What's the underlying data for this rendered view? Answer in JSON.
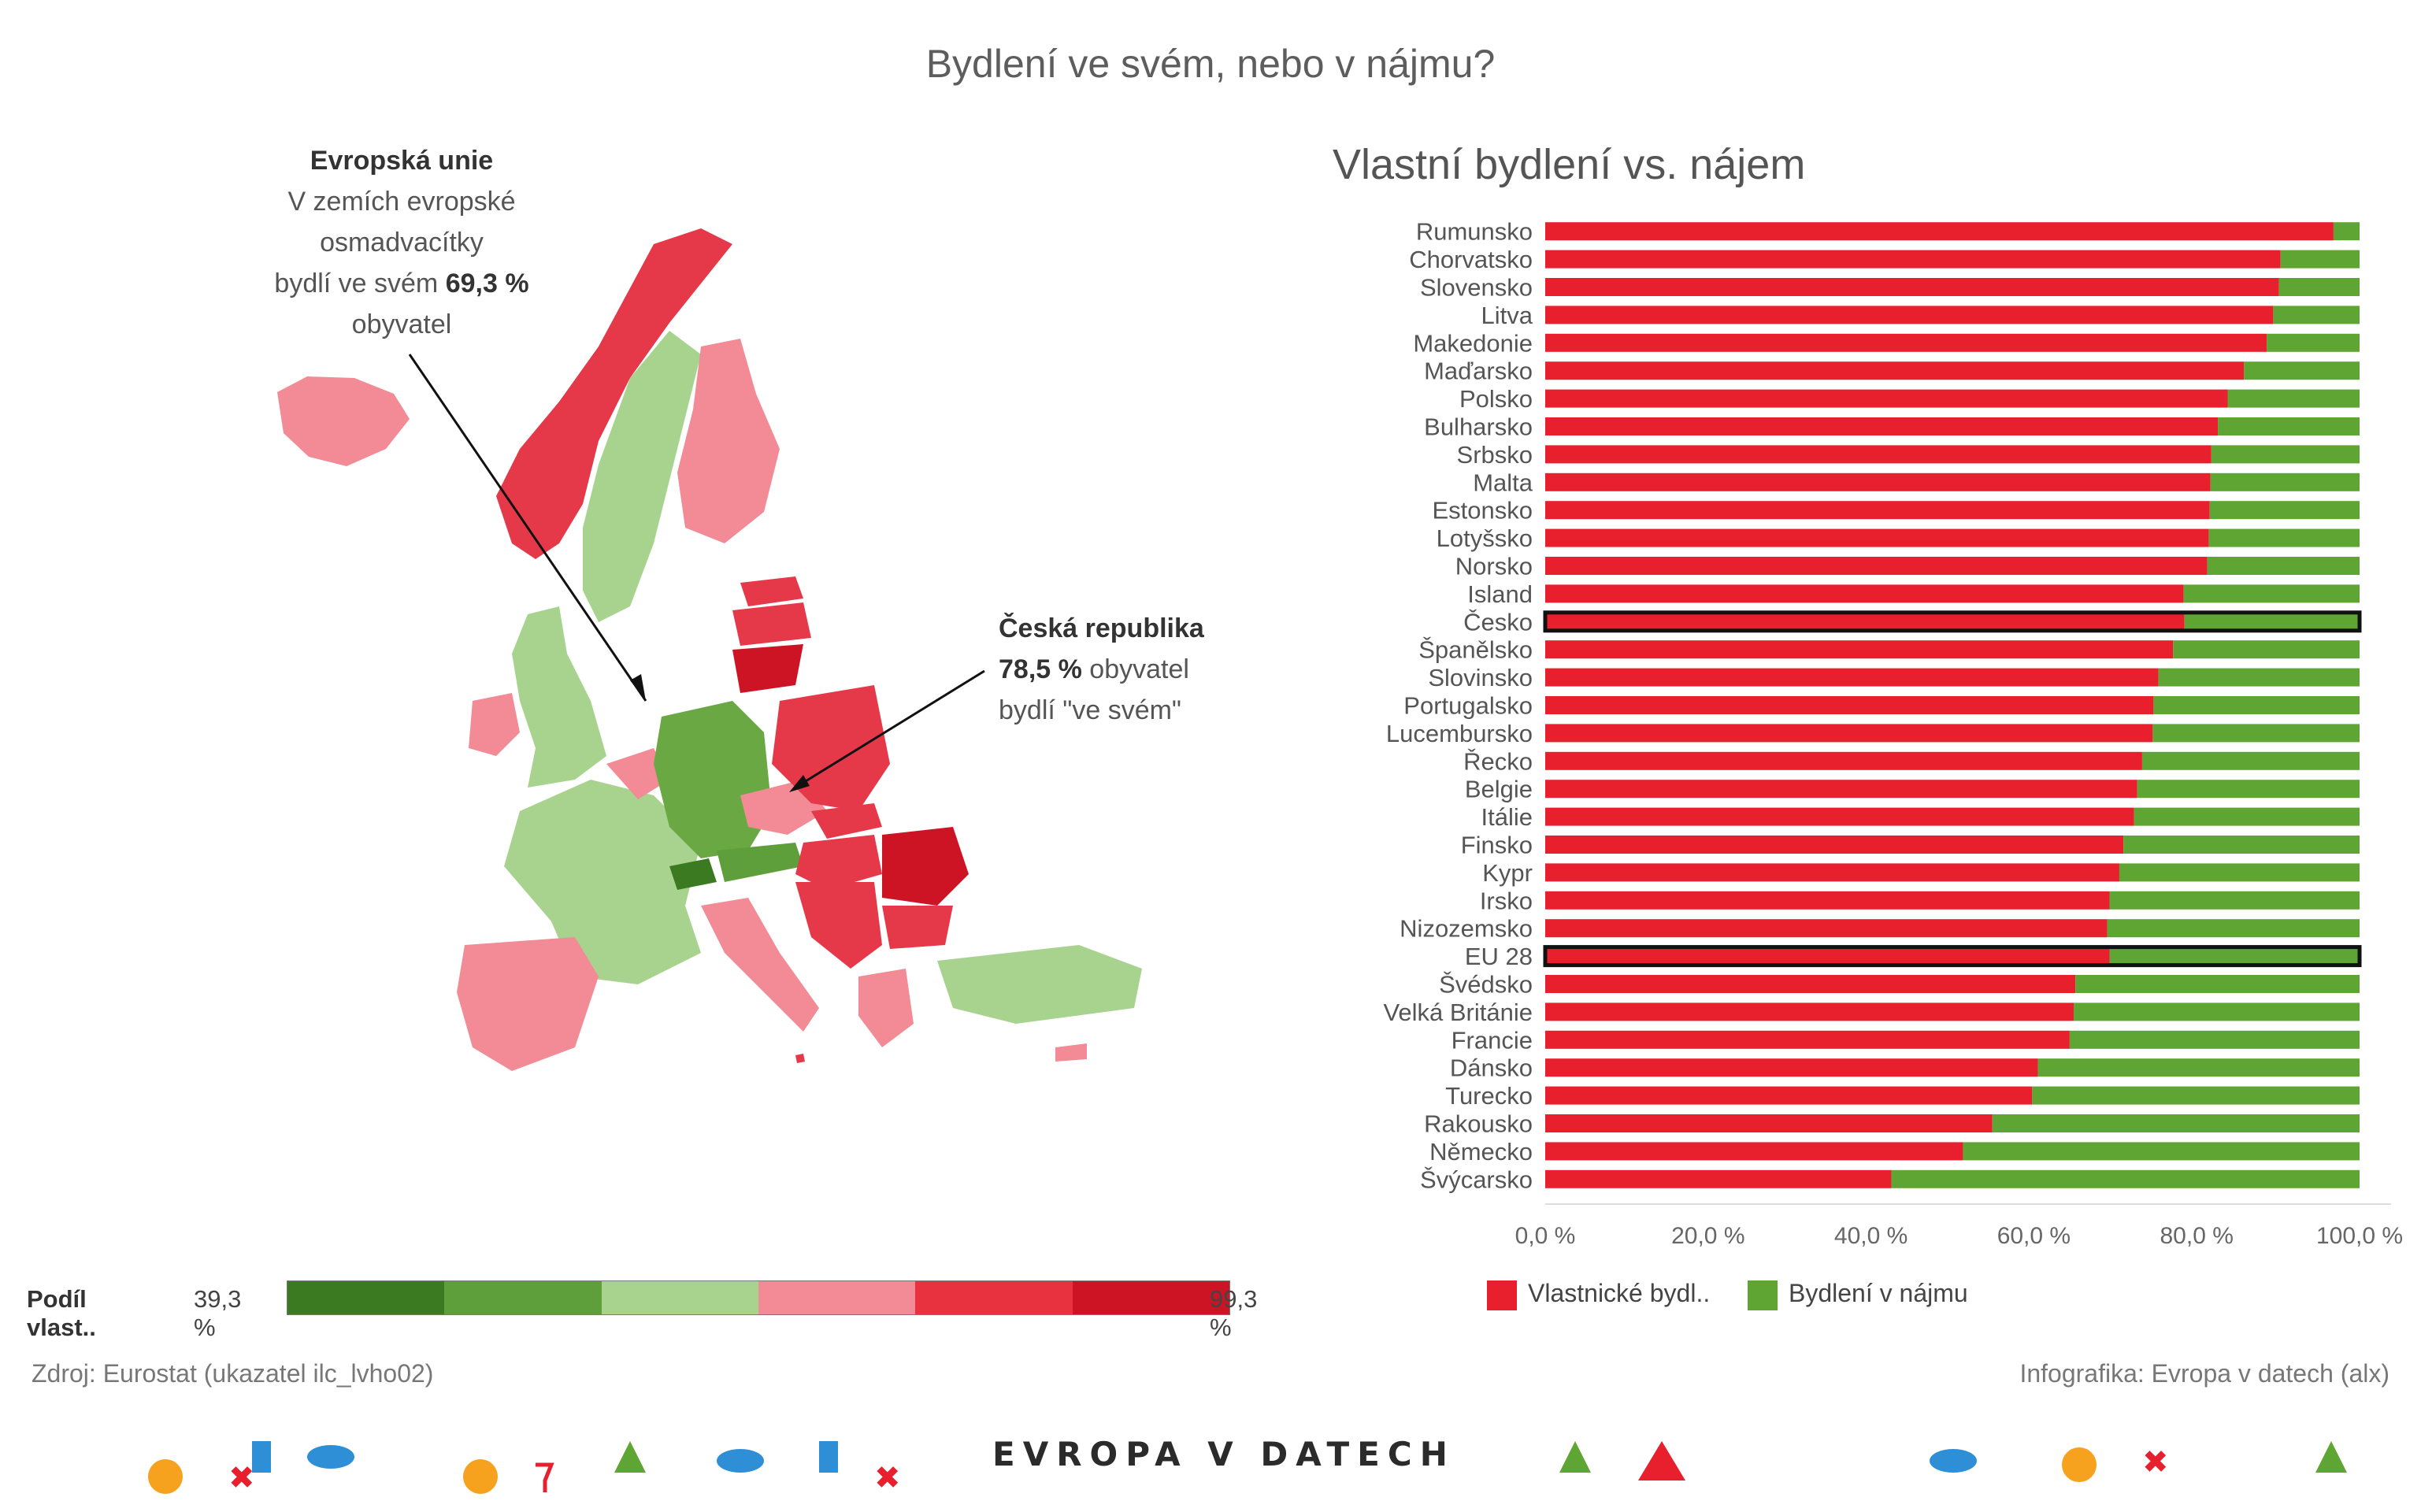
{
  "title": "Bydlení ve svém, nebo v nájmu?",
  "annotations": {
    "eu": {
      "heading": "Evropská unie",
      "line1": "V zemích evropské",
      "line2": "osmadvacítky",
      "line3_pre": "bydlí ve svém ",
      "line3_value": "69,3 %",
      "line4": "obyvatel"
    },
    "cz": {
      "heading": "Česká republika",
      "value": "78,5 %",
      "line2_post": " obyvatel",
      "line3": "bydlí \"ve svém\""
    }
  },
  "map_legend": {
    "label": "Podíl vlast..",
    "min": "39,3 %",
    "max": "99,3 %",
    "colors": [
      "#3c7a22",
      "#5e9f3c",
      "#a8d38e",
      "#f28b95",
      "#e8323f",
      "#cc1424"
    ]
  },
  "colors": {
    "owned": "#e8202e",
    "rented": "#5ea533",
    "highlight_border": "#111111"
  },
  "chart_data": {
    "type": "bar",
    "orientation": "horizontal",
    "stacked": true,
    "title": "Vlastní bydlení vs. nájem",
    "categories": [
      "Rumunsko",
      "Chorvatsko",
      "Slovensko",
      "Litva",
      "Makedonie",
      "Maďarsko",
      "Polsko",
      "Bulharsko",
      "Srbsko",
      "Malta",
      "Estonsko",
      "Lotyšsko",
      "Norsko",
      "Island",
      "Česko",
      "Španělsko",
      "Slovinsko",
      "Portugalsko",
      "Lucembursko",
      "Řecko",
      "Belgie",
      "Itálie",
      "Finsko",
      "Kypr",
      "Irsko",
      "Nizozemsko",
      "EU 28",
      "Švédsko",
      "Velká Británie",
      "Francie",
      "Dánsko",
      "Turecko",
      "Rakousko",
      "Německo",
      "Švýcarsko"
    ],
    "highlighted": [
      "Česko",
      "EU 28"
    ],
    "series": [
      {
        "name": "Vlastnické bydl..",
        "values": [
          96.8,
          90.3,
          90.1,
          89.4,
          88.6,
          85.8,
          83.8,
          82.6,
          81.8,
          81.7,
          81.6,
          81.5,
          81.3,
          78.4,
          78.5,
          77.1,
          75.3,
          74.7,
          74.6,
          73.3,
          72.7,
          72.3,
          71.0,
          70.5,
          69.3,
          69.0,
          69.3,
          65.1,
          64.9,
          64.4,
          60.5,
          59.8,
          54.9,
          51.3,
          42.5
        ]
      },
      {
        "name": "Bydlení v nájmu",
        "values": [
          3.2,
          9.7,
          9.9,
          10.6,
          11.4,
          14.2,
          16.2,
          17.4,
          18.2,
          18.3,
          18.4,
          18.5,
          18.7,
          21.6,
          21.5,
          22.9,
          24.7,
          25.3,
          25.4,
          26.7,
          27.3,
          27.7,
          29.0,
          29.5,
          30.7,
          31.0,
          30.7,
          34.9,
          35.1,
          35.6,
          39.5,
          40.2,
          45.1,
          48.7,
          57.5
        ]
      }
    ],
    "x_ticks": [
      "0,0 %",
      "20,0 %",
      "40,0 %",
      "60,0 %",
      "80,0 %",
      "100,0 %"
    ],
    "xlim": [
      0,
      100
    ]
  },
  "source": "Zdroj: Eurostat (ukazatel ilc_lvho02)",
  "credit": "Infografika: Evropa v datech (alx)",
  "logo": "EVROPA V DATECH"
}
